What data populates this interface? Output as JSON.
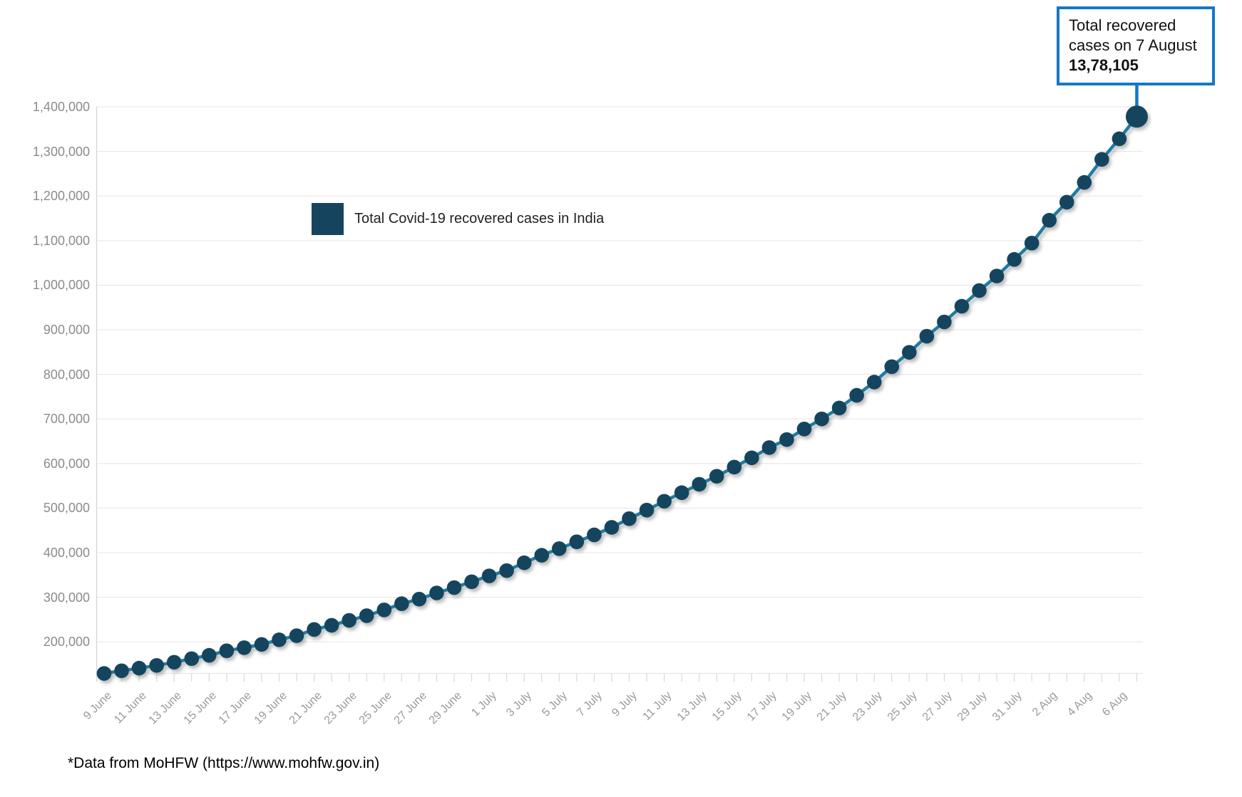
{
  "legend": {
    "label": "Total Covid-19 recovered cases in India",
    "swatch_color": "#15455e"
  },
  "annotation": {
    "line1": "Total recovered",
    "line2": "cases on 7 August",
    "value": "13,78,105",
    "border_color": "#1478c8",
    "target_date": "7 Aug"
  },
  "footer": {
    "text": "*Data from MoHFW (https://www.mohfw.gov.in)"
  },
  "chart_data": {
    "type": "line",
    "title": "",
    "xlabel": "",
    "ylabel": "",
    "series_name": "Total Covid-19 recovered cases in India",
    "legend_position": "inside-top-left",
    "grid": "horizontal",
    "ylim": [
      129215,
      1400000
    ],
    "y_tick_values": [
      200000,
      300000,
      400000,
      500000,
      600000,
      700000,
      800000,
      900000,
      1000000,
      1100000,
      1200000,
      1300000,
      1400000
    ],
    "y_tick_labels": [
      "200,000",
      "300,000",
      "400,000",
      "500,000",
      "600,000",
      "700,000",
      "800,000",
      "900,000",
      "1,000,000",
      "1,100,000",
      "1,200,000",
      "1,300,000",
      "1,400,000"
    ],
    "x_label_every": 2,
    "x": [
      "9 June",
      "10 June",
      "11 June",
      "12 June",
      "13 June",
      "14 June",
      "15 June",
      "16 June",
      "17 June",
      "18 June",
      "19 June",
      "20 June",
      "21 June",
      "22 June",
      "23 June",
      "24 June",
      "25 June",
      "26 June",
      "27 June",
      "28 June",
      "29 June",
      "30 June",
      "1 July",
      "2 July",
      "3 July",
      "4 July",
      "5 July",
      "6 July",
      "7 July",
      "8 July",
      "9 July",
      "10 July",
      "11 July",
      "12 July",
      "13 July",
      "14 July",
      "15 July",
      "16 July",
      "17 July",
      "18 July",
      "19 July",
      "20 July",
      "21 July",
      "22 July",
      "23 July",
      "24 July",
      "25 July",
      "26 July",
      "27 July",
      "28 July",
      "29 July",
      "30 July",
      "31 July",
      "1 Aug",
      "2 Aug",
      "3 Aug",
      "4 Aug",
      "5 Aug",
      "6 Aug",
      "7 Aug"
    ],
    "values": [
      129215,
      135206,
      141029,
      147195,
      154330,
      162379,
      169798,
      180013,
      186935,
      194325,
      204711,
      213831,
      227756,
      237196,
      248190,
      258685,
      271697,
      285637,
      295881,
      309713,
      321723,
      334822,
      347979,
      359860,
      377384,
      394227,
      409083,
      424433,
      439948,
      456831,
      476378,
      495513,
      515386,
      534620,
      553471,
      571460,
      592032,
      612815,
      635757,
      653751,
      677423,
      700087,
      724578,
      753050,
      782607,
      817209,
      849432,
      885577,
      917568,
      952744,
      988030,
      1020582,
      1057806,
      1094374,
      1145630,
      1186203,
      1230510,
      1282215,
      1328336,
      1378105
    ],
    "colors": {
      "line": "#1e7ca3",
      "marker": "#15455e",
      "grid": "#e9e9e9",
      "axis": "#d4d4d4",
      "tick": "#d8d8d8"
    }
  }
}
